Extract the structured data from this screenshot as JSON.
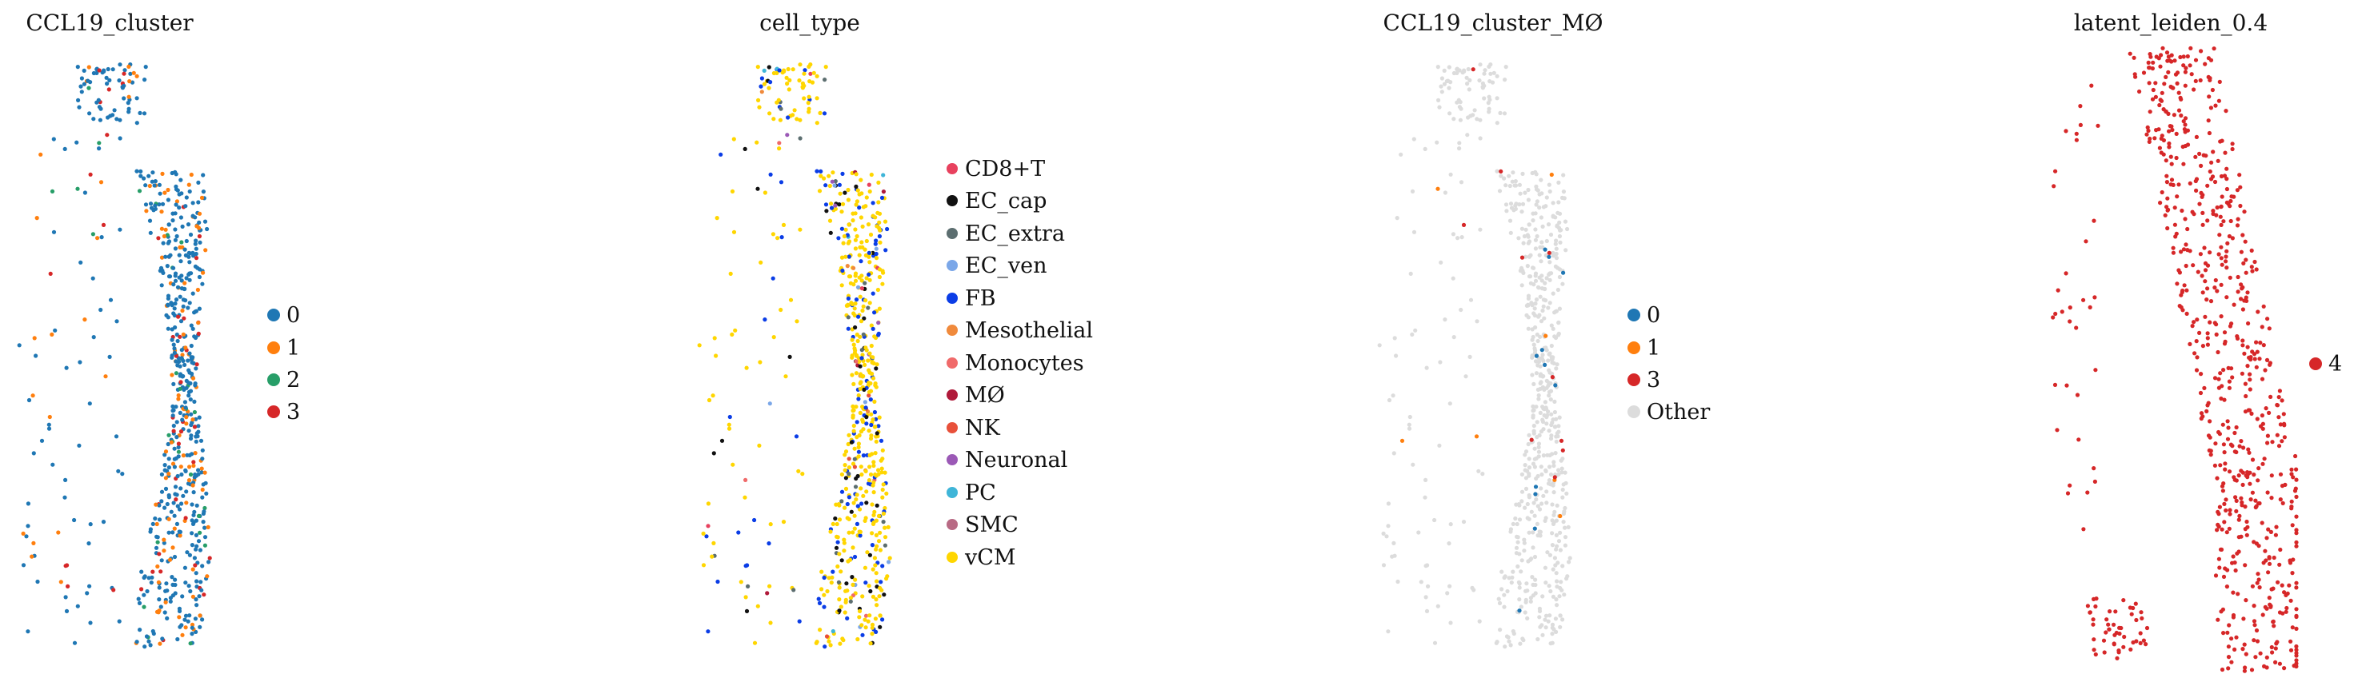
{
  "figure": {
    "panels": [
      {
        "title": "CCL19_cluster",
        "legend": [
          {
            "label": "0",
            "color": "#1f77b4"
          },
          {
            "label": "1",
            "color": "#ff7f0e"
          },
          {
            "label": "2",
            "color": "#279e68"
          },
          {
            "label": "3",
            "color": "#d62728"
          }
        ]
      },
      {
        "title": "cell_type",
        "legend": [
          {
            "label": "CD8+T",
            "color": "#e8415e"
          },
          {
            "label": "EC_cap",
            "color": "#111111"
          },
          {
            "label": "EC_extra",
            "color": "#5c6e70"
          },
          {
            "label": "EC_ven",
            "color": "#7ba7e8"
          },
          {
            "label": "FB",
            "color": "#0b3de6"
          },
          {
            "label": "Mesothelial",
            "color": "#f08a3c"
          },
          {
            "label": "Monocytes",
            "color": "#f06a6a"
          },
          {
            "label": "MØ",
            "color": "#b01a3a"
          },
          {
            "label": "NK",
            "color": "#e8503a"
          },
          {
            "label": "Neuronal",
            "color": "#9b59b6"
          },
          {
            "label": "PC",
            "color": "#3fb5d8"
          },
          {
            "label": "SMC",
            "color": "#b86a84"
          },
          {
            "label": "vCM",
            "color": "#ffd600"
          }
        ]
      },
      {
        "title": "CCL19_cluster_MØ",
        "legend": [
          {
            "label": "0",
            "color": "#1f77b4"
          },
          {
            "label": "1",
            "color": "#ff7f0e"
          },
          {
            "label": "3",
            "color": "#d62728"
          },
          {
            "label": "Other",
            "color": "#dcdcdc"
          }
        ]
      },
      {
        "title": "latent_leiden_0.4",
        "legend": [
          {
            "label": "4",
            "color": "#d62728"
          }
        ]
      }
    ]
  },
  "chart_data": [
    {
      "type": "scatter",
      "title": "CCL19_cluster",
      "xlabel": "",
      "ylabel": "",
      "grid": false,
      "axes_visible": false,
      "legend_position": "right",
      "categories": [
        "0",
        "1",
        "2",
        "3"
      ],
      "category_weights": [
        0.74,
        0.14,
        0.04,
        0.08
      ],
      "n_points": 720
    },
    {
      "type": "scatter",
      "title": "cell_type",
      "xlabel": "",
      "ylabel": "",
      "grid": false,
      "axes_visible": false,
      "legend_position": "right",
      "categories": [
        "CD8+T",
        "EC_cap",
        "EC_extra",
        "EC_ven",
        "FB",
        "Mesothelial",
        "Monocytes",
        "MØ",
        "NK",
        "Neuronal",
        "PC",
        "SMC",
        "vCM"
      ],
      "category_weights": [
        0.01,
        0.07,
        0.02,
        0.01,
        0.14,
        0.01,
        0.01,
        0.01,
        0.01,
        0.005,
        0.01,
        0.005,
        0.69
      ],
      "n_points": 720
    },
    {
      "type": "scatter",
      "title": "CCL19_cluster_MØ",
      "xlabel": "",
      "ylabel": "",
      "grid": false,
      "axes_visible": false,
      "legend_position": "right",
      "categories": [
        "0",
        "1",
        "3",
        "Other"
      ],
      "category_weights": [
        0.015,
        0.005,
        0.01,
        0.97
      ],
      "n_points": 720
    },
    {
      "type": "scatter",
      "title": "latent_leiden_0.4",
      "xlabel": "",
      "ylabel": "",
      "grid": false,
      "axes_visible": false,
      "legend_position": "right",
      "categories": [
        "4"
      ],
      "category_weights": [
        1.0
      ],
      "n_points": 720
    }
  ]
}
